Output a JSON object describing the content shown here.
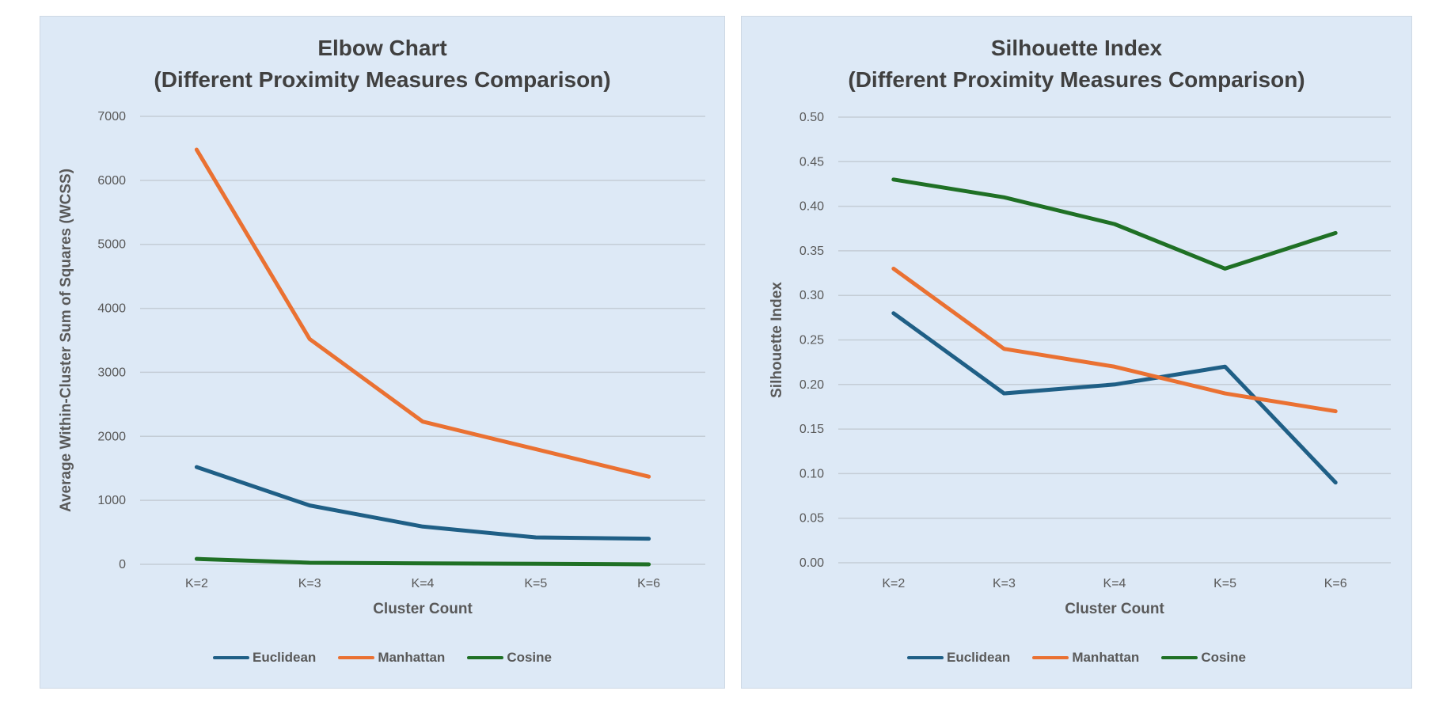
{
  "chart_data": [
    {
      "type": "line",
      "title": [
        "Elbow Chart",
        "(Different Proximity Measures Comparison)"
      ],
      "xlabel": "Cluster Count",
      "ylabel": "Average Within-Cluster Sum of Squares (WCSS)",
      "categories": [
        "K=2",
        "K=3",
        "K=4",
        "K=5",
        "K=6"
      ],
      "ylim": [
        0,
        7000
      ],
      "yticks": [
        0,
        1000,
        2000,
        3000,
        4000,
        5000,
        6000,
        7000
      ],
      "ytick_labels": [
        "0",
        "1000",
        "2000",
        "3000",
        "4000",
        "5000",
        "6000",
        "7000"
      ],
      "grid": true,
      "legend": "bottom",
      "series": [
        {
          "name": "Euclidean",
          "color": "#1f5f86",
          "values": [
            1520,
            920,
            590,
            420,
            400
          ]
        },
        {
          "name": "Manhattan",
          "color": "#ea7132",
          "values": [
            6480,
            3520,
            2230,
            1800,
            1370
          ]
        },
        {
          "name": "Cosine",
          "color": "#1f7025",
          "values": [
            85,
            25,
            15,
            10,
            0
          ]
        }
      ]
    },
    {
      "type": "line",
      "title": [
        "Silhouette Index",
        "(Different Proximity Measures Comparison)"
      ],
      "xlabel": "Cluster Count",
      "ylabel": "Silhouette Index",
      "categories": [
        "K=2",
        "K=3",
        "K=4",
        "K=5",
        "K=6"
      ],
      "ylim": [
        0,
        0.5
      ],
      "yticks": [
        0,
        0.05,
        0.1,
        0.15,
        0.2,
        0.25,
        0.3,
        0.35,
        0.4,
        0.45,
        0.5
      ],
      "ytick_labels": [
        "0.00",
        "0.05",
        "0.10",
        "0.15",
        "0.20",
        "0.25",
        "0.30",
        "0.35",
        "0.40",
        "0.45",
        "0.50"
      ],
      "grid": true,
      "legend": "bottom",
      "series": [
        {
          "name": "Euclidean",
          "color": "#1f5f86",
          "values": [
            0.28,
            0.19,
            0.2,
            0.22,
            0.09
          ]
        },
        {
          "name": "Manhattan",
          "color": "#ea7132",
          "values": [
            0.33,
            0.24,
            0.22,
            0.19,
            0.17
          ]
        },
        {
          "name": "Cosine",
          "color": "#1f7025",
          "values": [
            0.43,
            0.41,
            0.38,
            0.33,
            0.37
          ]
        }
      ]
    }
  ]
}
